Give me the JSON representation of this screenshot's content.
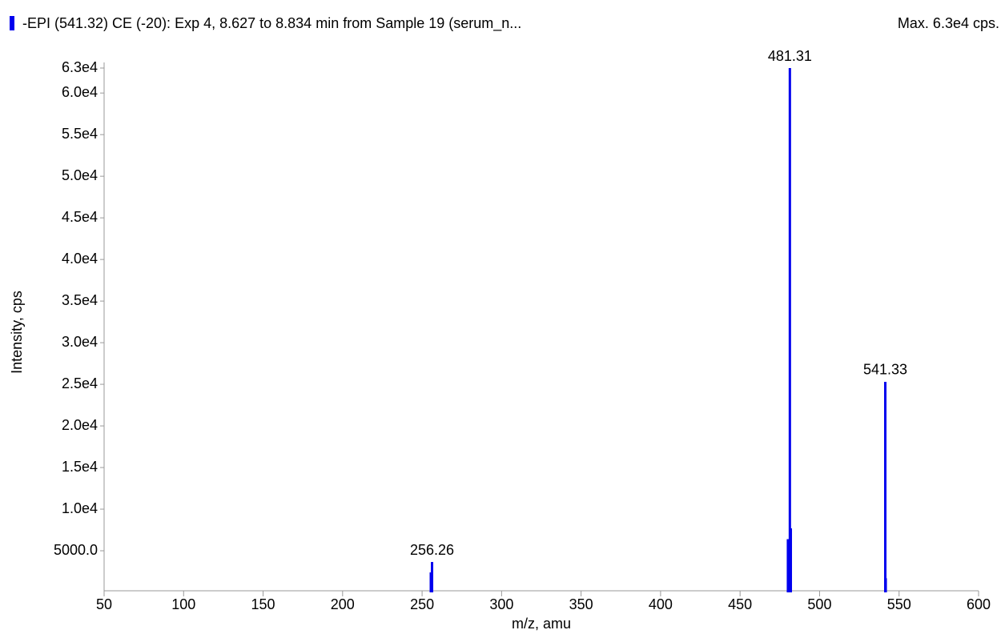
{
  "chart_data": {
    "type": "stem",
    "title": "-EPI (541.32) CE (-20): Exp 4, 8.627 to 8.834 min from Sample 19 (serum_n...",
    "subtitle": "Max. 6.3e4 cps.",
    "x_label": "m/z, amu",
    "y_label": "Intensity, cps",
    "color": "#0000ee",
    "x": [
      255.5,
      256.26,
      480.1,
      481.31,
      481.9,
      541.33,
      541.6
    ],
    "values": [
      2400,
      3650,
      6400,
      63000,
      7700,
      25300,
      1700
    ],
    "annotations": [
      "256.26",
      "481.31",
      "541.33"
    ],
    "xlim": [
      50,
      600
    ],
    "xticks": [
      50,
      100,
      150,
      200,
      250,
      300,
      350,
      400,
      450,
      500,
      550,
      600
    ],
    "ylim": [
      0,
      63000
    ],
    "yticks": [
      {
        "value": 5000,
        "label": "5000.0"
      },
      {
        "value": 10000,
        "label": "1.0e4"
      },
      {
        "value": 15000,
        "label": "1.5e4"
      },
      {
        "value": 20000,
        "label": "2.0e4"
      },
      {
        "value": 25000,
        "label": "2.5e4"
      },
      {
        "value": 30000,
        "label": "3.0e4"
      },
      {
        "value": 35000,
        "label": "3.5e4"
      },
      {
        "value": 40000,
        "label": "4.0e4"
      },
      {
        "value": 45000,
        "label": "4.5e4"
      },
      {
        "value": 50000,
        "label": "5.0e4"
      },
      {
        "value": 55000,
        "label": "5.5e4"
      },
      {
        "value": 60000,
        "label": "6.0e4"
      },
      {
        "value": 63000,
        "label": "6.3e4"
      }
    ]
  }
}
